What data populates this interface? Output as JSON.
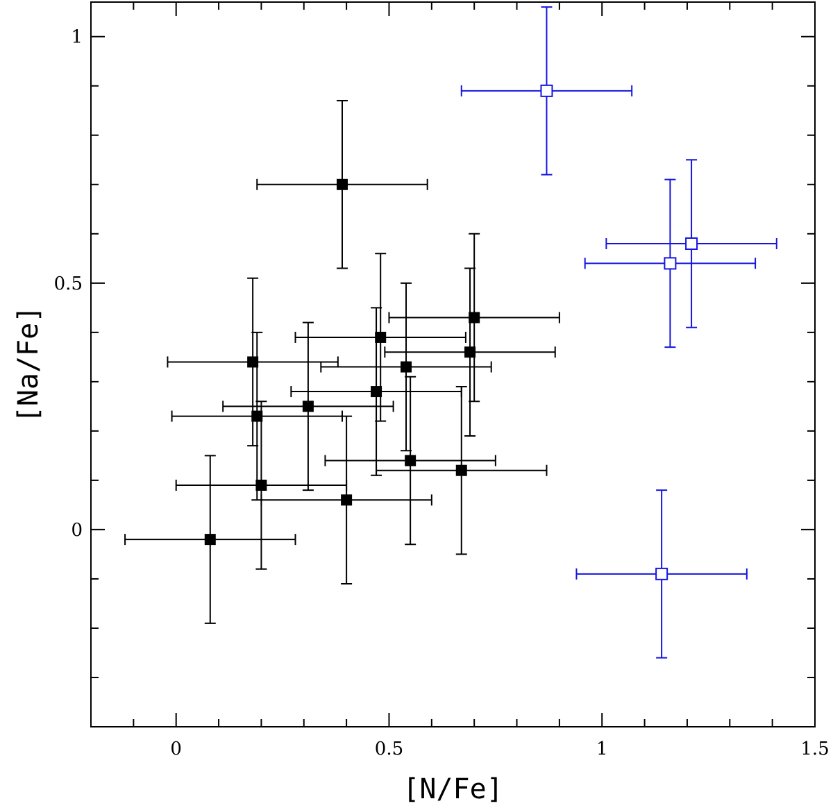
{
  "chart_data": {
    "type": "scatter",
    "title": "",
    "xlabel": "[N/Fe]",
    "ylabel": "[Na/Fe]",
    "xlim": [
      -0.2,
      1.5
    ],
    "ylim": [
      -0.4,
      1.07
    ],
    "x_major_ticks": [
      0,
      0.5,
      1,
      1.5
    ],
    "x_minor_ticks": [
      -0.1,
      0.1,
      0.2,
      0.3,
      0.4,
      0.6,
      0.7,
      0.8,
      0.9,
      1.1,
      1.2,
      1.3,
      1.4
    ],
    "x_tick_labels": [
      "0",
      "0.5",
      "1",
      "1.5"
    ],
    "y_major_ticks": [
      0,
      0.5,
      1
    ],
    "y_minor_ticks": [
      -0.3,
      -0.2,
      -0.1,
      0.1,
      0.2,
      0.3,
      0.4,
      0.6,
      0.7,
      0.8,
      0.9
    ],
    "y_tick_labels": [
      "0",
      "0.5",
      "1"
    ],
    "grid": false,
    "series": [
      {
        "name": "filled",
        "marker": "filled-square",
        "color": "#000000",
        "points": [
          {
            "x": 0.39,
            "y": 0.7,
            "xerr": 0.2,
            "yerr": 0.17
          },
          {
            "x": 0.18,
            "y": 0.34,
            "xerr": 0.2,
            "yerr": 0.17
          },
          {
            "x": 0.19,
            "y": 0.23,
            "xerr": 0.2,
            "yerr": 0.17
          },
          {
            "x": 0.2,
            "y": 0.09,
            "xerr": 0.2,
            "yerr": 0.17
          },
          {
            "x": 0.08,
            "y": -0.02,
            "xerr": 0.2,
            "yerr": 0.17
          },
          {
            "x": 0.31,
            "y": 0.25,
            "xerr": 0.2,
            "yerr": 0.17
          },
          {
            "x": 0.4,
            "y": 0.06,
            "xerr": 0.2,
            "yerr": 0.17
          },
          {
            "x": 0.47,
            "y": 0.28,
            "xerr": 0.2,
            "yerr": 0.17
          },
          {
            "x": 0.48,
            "y": 0.39,
            "xerr": 0.2,
            "yerr": 0.17
          },
          {
            "x": 0.54,
            "y": 0.33,
            "xerr": 0.2,
            "yerr": 0.17
          },
          {
            "x": 0.55,
            "y": 0.14,
            "xerr": 0.2,
            "yerr": 0.17
          },
          {
            "x": 0.67,
            "y": 0.12,
            "xerr": 0.2,
            "yerr": 0.17
          },
          {
            "x": 0.69,
            "y": 0.36,
            "xerr": 0.2,
            "yerr": 0.17
          },
          {
            "x": 0.7,
            "y": 0.43,
            "xerr": 0.2,
            "yerr": 0.17
          }
        ]
      },
      {
        "name": "open",
        "marker": "open-square",
        "color": "#1515e0",
        "points": [
          {
            "x": 0.87,
            "y": 0.89,
            "xerr": 0.2,
            "yerr": 0.17
          },
          {
            "x": 1.21,
            "y": 0.58,
            "xerr": 0.2,
            "yerr": 0.17
          },
          {
            "x": 1.16,
            "y": 0.54,
            "xerr": 0.2,
            "yerr": 0.17
          },
          {
            "x": 1.14,
            "y": -0.09,
            "xerr": 0.2,
            "yerr": 0.17
          }
        ]
      }
    ]
  }
}
